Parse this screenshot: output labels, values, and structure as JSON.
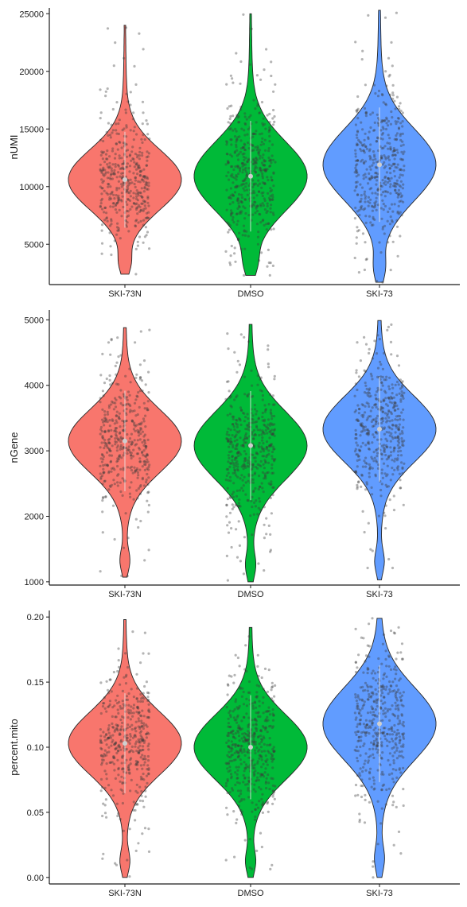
{
  "chart_data": [
    {
      "type": "violin",
      "title": "",
      "xlabel": "",
      "ylabel": "nUMI",
      "categories": [
        "SKI-73N",
        "DMSO",
        "SKI-73"
      ],
      "ylim": [
        1500,
        25500
      ],
      "yticks": [
        5000,
        10000,
        15000,
        20000,
        25000
      ],
      "ytick_labels": [
        "5000",
        "10000",
        "15000",
        "20000",
        "25000"
      ],
      "series": [
        {
          "category": "SKI-73N",
          "color": "#F8766D",
          "min": 2400,
          "max": 24000,
          "center": 10600,
          "spread": 2600,
          "points": 420
        },
        {
          "category": "DMSO",
          "color": "#00BA38",
          "min": 2300,
          "max": 25000,
          "center": 10900,
          "spread": 3000,
          "points": 460
        },
        {
          "category": "SKI-73",
          "color": "#619CFF",
          "min": 1700,
          "max": 25300,
          "center": 11900,
          "spread": 3100,
          "points": 430
        }
      ]
    },
    {
      "type": "violin",
      "title": "",
      "xlabel": "",
      "ylabel": "nGene",
      "categories": [
        "SKI-73N",
        "DMSO",
        "SKI-73"
      ],
      "ylim": [
        950,
        5150
      ],
      "yticks": [
        1000,
        2000,
        3000,
        4000,
        5000
      ],
      "ytick_labels": [
        "1000",
        "2000",
        "3000",
        "4000",
        "5000"
      ],
      "series": [
        {
          "category": "SKI-73N",
          "color": "#F8766D",
          "min": 1070,
          "max": 4880,
          "center": 3150,
          "spread": 480,
          "points": 420
        },
        {
          "category": "DMSO",
          "color": "#00BA38",
          "min": 1000,
          "max": 4930,
          "center": 3080,
          "spread": 520,
          "points": 460
        },
        {
          "category": "SKI-73",
          "color": "#619CFF",
          "min": 1030,
          "max": 4990,
          "center": 3330,
          "spread": 500,
          "points": 430
        }
      ]
    },
    {
      "type": "violin",
      "title": "",
      "xlabel": "",
      "ylabel": "percent.mito",
      "categories": [
        "SKI-73N",
        "DMSO",
        "SKI-73"
      ],
      "ylim": [
        -0.005,
        0.205
      ],
      "yticks": [
        0.0,
        0.05,
        0.1,
        0.15,
        0.2
      ],
      "ytick_labels": [
        "0.00",
        "0.05",
        "0.10",
        "0.15",
        "0.20"
      ],
      "series": [
        {
          "category": "SKI-73N",
          "color": "#F8766D",
          "min": 0.0,
          "max": 0.198,
          "center": 0.103,
          "spread": 0.024,
          "points": 420
        },
        {
          "category": "DMSO",
          "color": "#00BA38",
          "min": 0.0,
          "max": 0.192,
          "center": 0.1,
          "spread": 0.025,
          "points": 460
        },
        {
          "category": "SKI-73",
          "color": "#619CFF",
          "min": 0.0,
          "max": 0.199,
          "center": 0.118,
          "spread": 0.028,
          "points": 430
        }
      ]
    }
  ]
}
